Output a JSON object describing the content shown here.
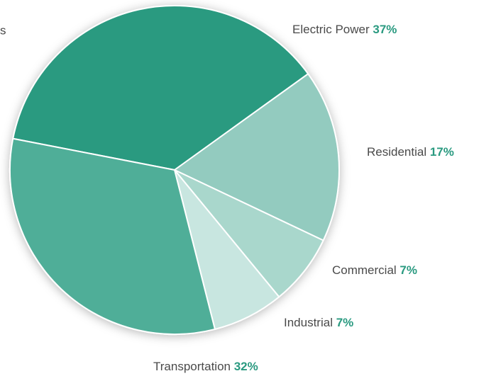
{
  "chart_data": {
    "type": "pie",
    "annotation": "s",
    "categories": [
      "Electric Power",
      "Residential",
      "Commercial",
      "Industrial",
      "Transportation"
    ],
    "values": [
      37,
      17,
      7,
      7,
      32
    ],
    "value_labels": [
      "37%",
      "17%",
      "7%",
      "7%",
      "32%"
    ],
    "colors": [
      "#2a9a80",
      "#93cbbf",
      "#a9d7cc",
      "#c8e6e0",
      "#4fae98"
    ],
    "start_angle": 281
  }
}
